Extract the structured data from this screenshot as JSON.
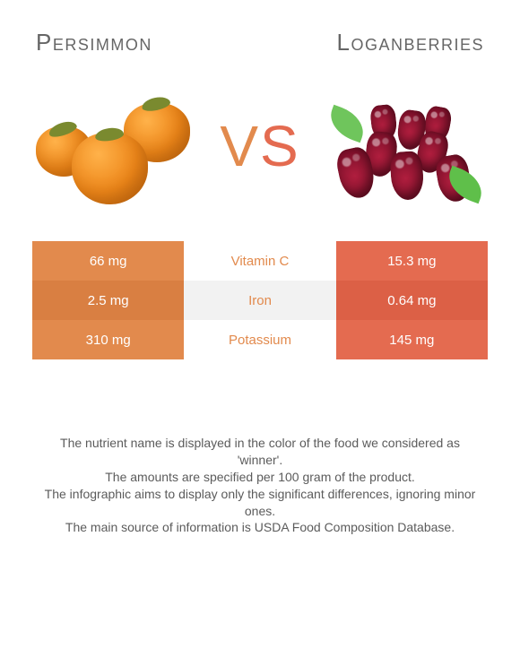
{
  "colors": {
    "persimmon": "#e28a4d",
    "loganberry": "#e46b50",
    "mid_alt_a": "#ffffff",
    "mid_alt_b": "#f2f2f2",
    "left_alt_a": "#e28a4d",
    "left_alt_b": "#d97f42",
    "right_alt_a": "#e46b50",
    "right_alt_b": "#dc6046"
  },
  "titles": {
    "left": "Persimmon",
    "right": "Loganberries"
  },
  "vs": {
    "v": "V",
    "s": "S"
  },
  "rows": [
    {
      "left": "66 mg",
      "label": "Vitamin C",
      "right": "15.3 mg",
      "winner": "left"
    },
    {
      "left": "2.5 mg",
      "label": "Iron",
      "right": "0.64 mg",
      "winner": "left"
    },
    {
      "left": "310 mg",
      "label": "Potassium",
      "right": "145 mg",
      "winner": "left"
    }
  ],
  "footnotes": [
    "The nutrient name is displayed in the color of the food we considered as 'winner'.",
    "The amounts are specified per 100 gram of the product.",
    "The infographic aims to display only the significant differences, ignoring minor ones.",
    "The main source of information is USDA Food Composition Database."
  ]
}
